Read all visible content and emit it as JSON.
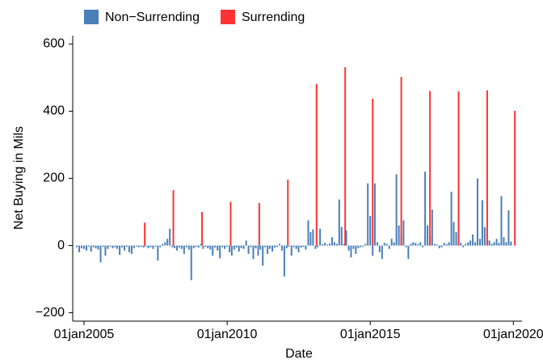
{
  "chart_data": {
    "type": "bar",
    "xlabel": "Date",
    "ylabel": "Net Buying in Mils",
    "xlim": [
      "2004-08-10",
      "2020-04-20"
    ],
    "xticks": [
      {
        "value": "2005-01-01",
        "label": "01jan2005"
      },
      {
        "value": "2010-01-01",
        "label": "01jan2010"
      },
      {
        "value": "2015-01-01",
        "label": "01jan2015"
      },
      {
        "value": "2020-01-01",
        "label": "01jan2020"
      }
    ],
    "ylim": [
      -225,
      625
    ],
    "yticks": [
      {
        "value": -200,
        "label": "−200"
      },
      0,
      200,
      400,
      600
    ],
    "legend": "top-left",
    "series": [
      {
        "name": "Non−Surrending",
        "color": "#4a7fb8",
        "x": [
          "2004-10-01",
          "2004-11-01",
          "2004-12-01",
          "2005-01-01",
          "2005-02-01",
          "2005-03-01",
          "2005-04-01",
          "2005-05-01",
          "2005-06-01",
          "2005-07-01",
          "2005-08-01",
          "2005-09-01",
          "2005-10-01",
          "2005-11-01",
          "2005-12-01",
          "2006-01-01",
          "2006-02-01",
          "2006-03-01",
          "2006-04-01",
          "2006-05-01",
          "2006-06-01",
          "2006-07-01",
          "2006-08-01",
          "2006-09-01",
          "2006-10-01",
          "2006-11-01",
          "2006-12-01",
          "2007-01-01",
          "2007-02-01",
          "2007-03-01",
          "2007-04-01",
          "2007-05-01",
          "2007-06-01",
          "2007-07-01",
          "2007-08-01",
          "2007-09-01",
          "2007-10-01",
          "2007-11-01",
          "2007-12-01",
          "2008-01-01",
          "2008-02-01",
          "2008-03-01",
          "2008-04-01",
          "2008-05-01",
          "2008-06-01",
          "2008-07-01",
          "2008-08-01",
          "2008-09-01",
          "2008-10-01",
          "2008-11-01",
          "2008-12-01",
          "2009-01-01",
          "2009-02-01",
          "2009-03-01",
          "2009-04-01",
          "2009-05-01",
          "2009-06-01",
          "2009-07-01",
          "2009-08-01",
          "2009-09-01",
          "2009-10-01",
          "2009-11-01",
          "2009-12-01",
          "2010-01-01",
          "2010-02-01",
          "2010-03-01",
          "2010-04-01",
          "2010-05-01",
          "2010-06-01",
          "2010-07-01",
          "2010-08-01",
          "2010-09-01",
          "2010-10-01",
          "2010-11-01",
          "2010-12-01",
          "2011-01-01",
          "2011-02-01",
          "2011-03-01",
          "2011-04-01",
          "2011-05-01",
          "2011-06-01",
          "2011-07-01",
          "2011-08-01",
          "2011-09-01",
          "2011-10-01",
          "2011-11-01",
          "2011-12-01",
          "2012-01-01",
          "2012-02-01",
          "2012-03-01",
          "2012-04-01",
          "2012-05-01",
          "2012-06-01",
          "2012-07-01",
          "2012-08-01",
          "2012-09-01",
          "2012-10-01",
          "2012-11-01",
          "2012-12-01",
          "2013-01-01",
          "2013-02-01",
          "2013-03-01",
          "2013-04-01",
          "2013-05-01",
          "2013-06-01",
          "2013-07-01",
          "2013-08-01",
          "2013-09-01",
          "2013-10-01",
          "2013-11-01",
          "2013-12-01",
          "2014-01-01",
          "2014-02-01",
          "2014-03-01",
          "2014-04-01",
          "2014-05-01",
          "2014-06-01",
          "2014-07-01",
          "2014-08-01",
          "2014-09-01",
          "2014-10-01",
          "2014-11-01",
          "2014-12-01",
          "2015-01-01",
          "2015-02-01",
          "2015-03-01",
          "2015-04-01",
          "2015-05-01",
          "2015-06-01",
          "2015-07-01",
          "2015-08-01",
          "2015-09-01",
          "2015-10-01",
          "2015-11-01",
          "2015-12-01",
          "2016-01-01",
          "2016-02-01",
          "2016-03-01",
          "2016-04-01",
          "2016-05-01",
          "2016-06-01",
          "2016-07-01",
          "2016-08-01",
          "2016-09-01",
          "2016-10-01",
          "2016-11-01",
          "2016-12-01",
          "2017-01-01",
          "2017-02-01",
          "2017-03-01",
          "2017-04-01",
          "2017-05-01",
          "2017-06-01",
          "2017-07-01",
          "2017-08-01",
          "2017-09-01",
          "2017-10-01",
          "2017-11-01",
          "2017-12-01",
          "2018-01-01",
          "2018-02-01",
          "2018-03-01",
          "2018-04-01",
          "2018-05-01",
          "2018-06-01",
          "2018-07-01",
          "2018-08-01",
          "2018-09-01",
          "2018-10-01",
          "2018-11-01",
          "2018-12-01",
          "2019-01-01",
          "2019-02-01",
          "2019-03-01",
          "2019-04-01",
          "2019-05-01",
          "2019-06-01",
          "2019-07-01",
          "2019-08-01",
          "2019-09-01",
          "2019-10-01",
          "2019-11-01",
          "2019-12-01"
        ],
        "values": [
          -5,
          -20,
          -8,
          -10,
          -15,
          -3,
          -18,
          -5,
          -8,
          -12,
          -50,
          -4,
          -30,
          -10,
          -3,
          -8,
          -5,
          -10,
          -28,
          -6,
          -15,
          -4,
          -20,
          -25,
          -8,
          -3,
          -5,
          -4,
          -6,
          -3,
          -8,
          -5,
          -10,
          -3,
          -45,
          -5,
          5,
          10,
          20,
          50,
          -5,
          -8,
          -15,
          -6,
          -10,
          -25,
          -5,
          -12,
          -103,
          -8,
          -4,
          -6,
          5,
          -10,
          -4,
          -8,
          -12,
          -30,
          -6,
          -15,
          -38,
          -5,
          -10,
          -4,
          -20,
          -30,
          -12,
          -6,
          -18,
          -8,
          -10,
          15,
          -25,
          -5,
          -40,
          -8,
          -30,
          -12,
          -60,
          -5,
          -25,
          -10,
          -18,
          -6,
          -4,
          5,
          -15,
          -92,
          -8,
          -3,
          -30,
          -5,
          -10,
          -20,
          -6,
          -4,
          -12,
          75,
          40,
          48,
          -10,
          -5,
          50,
          4,
          8,
          3,
          6,
          25,
          10,
          5,
          137,
          55,
          5,
          45,
          -15,
          -35,
          -10,
          -25,
          -8,
          -5,
          -3,
          5,
          185,
          88,
          -30,
          185,
          10,
          -20,
          -40,
          8,
          5,
          -10,
          20,
          10,
          212,
          60,
          30,
          75,
          -5,
          -40,
          5,
          10,
          8,
          4,
          10,
          -5,
          220,
          60,
          30,
          107,
          5,
          3,
          -8,
          -5,
          8,
          4,
          10,
          160,
          70,
          40,
          163,
          8,
          -5,
          5,
          10,
          15,
          33,
          10,
          200,
          20,
          135,
          55,
          10,
          15,
          5,
          10,
          20,
          8,
          147,
          25,
          10,
          105,
          12
        ]
      },
      {
        "name": "Surrending",
        "color": "#ff3333",
        "x": [
          "2007-02-15",
          "2008-02-15",
          "2009-02-15",
          "2010-02-15",
          "2011-02-15",
          "2012-02-15",
          "2013-02-15",
          "2014-02-15",
          "2015-02-01",
          "2016-02-01",
          "2017-02-01",
          "2018-02-01",
          "2019-02-01",
          "2020-01-20"
        ],
        "values": [
          68,
          165,
          100,
          130,
          127,
          196,
          481,
          531,
          437,
          502,
          460,
          459,
          462,
          401
        ]
      }
    ]
  }
}
